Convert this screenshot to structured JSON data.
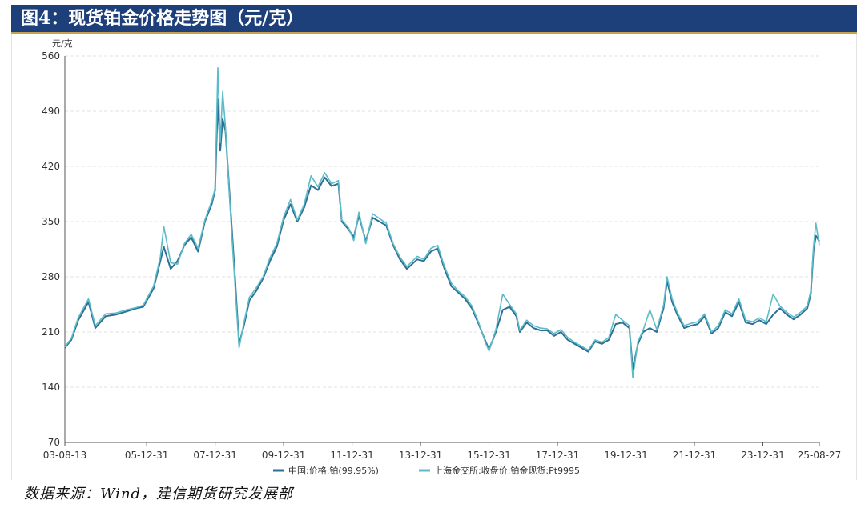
{
  "header": {
    "title": "图4：现货铂金价格走势图（元/克）"
  },
  "footer": {
    "source": "数据来源：Wind，建信期货研究发展部"
  },
  "chart_data": {
    "type": "line",
    "ylabel": "元/克",
    "ylim": [
      70,
      560
    ],
    "y_ticks": [
      70,
      140,
      210,
      280,
      350,
      420,
      490,
      560
    ],
    "x_tick_labels": [
      "03-08-13",
      "05-12-31",
      "07-12-31",
      "09-12-31",
      "11-12-31",
      "13-12-31",
      "15-12-31",
      "17-12-31",
      "19-12-31",
      "21-12-31",
      "23-12-31",
      "25-08-27"
    ],
    "x_tick_years": [
      2003.61,
      2006.0,
      2008.0,
      2010.0,
      2012.0,
      2014.0,
      2016.0,
      2018.0,
      2020.0,
      2022.0,
      2024.0,
      2025.65
    ],
    "grid": "horizontal-dashed",
    "legend_position": "bottom",
    "series": [
      {
        "name": "中国:价格:铂(99.95%)",
        "color": "#2e6f95",
        "points": [
          [
            2003.61,
            190
          ],
          [
            2003.8,
            200
          ],
          [
            2004.0,
            225
          ],
          [
            2004.3,
            248
          ],
          [
            2004.5,
            215
          ],
          [
            2004.8,
            230
          ],
          [
            2005.1,
            232
          ],
          [
            2005.4,
            236
          ],
          [
            2005.7,
            240
          ],
          [
            2005.9,
            242
          ],
          [
            2006.2,
            265
          ],
          [
            2006.4,
            300
          ],
          [
            2006.5,
            318
          ],
          [
            2006.7,
            290
          ],
          [
            2006.9,
            300
          ],
          [
            2007.1,
            320
          ],
          [
            2007.3,
            330
          ],
          [
            2007.5,
            312
          ],
          [
            2007.7,
            350
          ],
          [
            2007.9,
            372
          ],
          [
            2008.0,
            390
          ],
          [
            2008.08,
            505
          ],
          [
            2008.15,
            440
          ],
          [
            2008.22,
            480
          ],
          [
            2008.3,
            465
          ],
          [
            2008.4,
            400
          ],
          [
            2008.55,
            300
          ],
          [
            2008.7,
            195
          ],
          [
            2008.85,
            220
          ],
          [
            2009.0,
            250
          ],
          [
            2009.2,
            262
          ],
          [
            2009.4,
            278
          ],
          [
            2009.6,
            300
          ],
          [
            2009.8,
            318
          ],
          [
            2010.0,
            352
          ],
          [
            2010.2,
            372
          ],
          [
            2010.4,
            350
          ],
          [
            2010.6,
            368
          ],
          [
            2010.8,
            396
          ],
          [
            2011.0,
            390
          ],
          [
            2011.2,
            406
          ],
          [
            2011.4,
            395
          ],
          [
            2011.6,
            398
          ],
          [
            2011.7,
            350
          ],
          [
            2011.9,
            340
          ],
          [
            2012.05,
            330
          ],
          [
            2012.2,
            358
          ],
          [
            2012.4,
            325
          ],
          [
            2012.6,
            355
          ],
          [
            2012.8,
            350
          ],
          [
            2013.0,
            345
          ],
          [
            2013.2,
            320
          ],
          [
            2013.4,
            302
          ],
          [
            2013.6,
            290
          ],
          [
            2013.9,
            302
          ],
          [
            2014.1,
            300
          ],
          [
            2014.3,
            312
          ],
          [
            2014.5,
            316
          ],
          [
            2014.7,
            290
          ],
          [
            2014.9,
            268
          ],
          [
            2015.1,
            260
          ],
          [
            2015.3,
            252
          ],
          [
            2015.5,
            240
          ],
          [
            2015.7,
            220
          ],
          [
            2015.9,
            198
          ],
          [
            2016.0,
            188
          ],
          [
            2016.2,
            210
          ],
          [
            2016.4,
            238
          ],
          [
            2016.6,
            242
          ],
          [
            2016.8,
            230
          ],
          [
            2016.9,
            210
          ],
          [
            2017.1,
            222
          ],
          [
            2017.3,
            215
          ],
          [
            2017.5,
            212
          ],
          [
            2017.7,
            212
          ],
          [
            2017.9,
            205
          ],
          [
            2018.1,
            210
          ],
          [
            2018.3,
            200
          ],
          [
            2018.5,
            195
          ],
          [
            2018.7,
            190
          ],
          [
            2018.9,
            185
          ],
          [
            2019.1,
            198
          ],
          [
            2019.3,
            195
          ],
          [
            2019.5,
            200
          ],
          [
            2019.7,
            220
          ],
          [
            2019.9,
            222
          ],
          [
            2020.1,
            215
          ],
          [
            2020.2,
            163
          ],
          [
            2020.35,
            195
          ],
          [
            2020.5,
            210
          ],
          [
            2020.7,
            215
          ],
          [
            2020.9,
            210
          ],
          [
            2021.1,
            240
          ],
          [
            2021.2,
            275
          ],
          [
            2021.35,
            248
          ],
          [
            2021.5,
            232
          ],
          [
            2021.7,
            215
          ],
          [
            2021.9,
            218
          ],
          [
            2022.1,
            220
          ],
          [
            2022.3,
            230
          ],
          [
            2022.5,
            208
          ],
          [
            2022.7,
            215
          ],
          [
            2022.9,
            235
          ],
          [
            2023.1,
            230
          ],
          [
            2023.3,
            248
          ],
          [
            2023.5,
            222
          ],
          [
            2023.7,
            220
          ],
          [
            2023.9,
            225
          ],
          [
            2024.1,
            220
          ],
          [
            2024.3,
            232
          ],
          [
            2024.5,
            240
          ],
          [
            2024.7,
            232
          ],
          [
            2024.9,
            226
          ],
          [
            2025.1,
            232
          ],
          [
            2025.3,
            240
          ],
          [
            2025.4,
            258
          ],
          [
            2025.48,
            312
          ],
          [
            2025.55,
            332
          ],
          [
            2025.65,
            325
          ]
        ]
      },
      {
        "name": "上海金交所:收盘价:铂金现货:Pt9995",
        "color": "#5bbcc7",
        "points": [
          [
            2003.61,
            191
          ],
          [
            2003.8,
            202
          ],
          [
            2004.0,
            228
          ],
          [
            2004.3,
            252
          ],
          [
            2004.5,
            218
          ],
          [
            2004.8,
            233
          ],
          [
            2005.1,
            234
          ],
          [
            2005.4,
            238
          ],
          [
            2005.7,
            241
          ],
          [
            2005.9,
            244
          ],
          [
            2006.2,
            268
          ],
          [
            2006.4,
            305
          ],
          [
            2006.5,
            344
          ],
          [
            2006.7,
            298
          ],
          [
            2006.9,
            296
          ],
          [
            2007.1,
            322
          ],
          [
            2007.3,
            334
          ],
          [
            2007.5,
            316
          ],
          [
            2007.7,
            352
          ],
          [
            2007.9,
            376
          ],
          [
            2008.0,
            392
          ],
          [
            2008.08,
            545
          ],
          [
            2008.15,
            450
          ],
          [
            2008.22,
            515
          ],
          [
            2008.3,
            470
          ],
          [
            2008.4,
            395
          ],
          [
            2008.55,
            290
          ],
          [
            2008.7,
            190
          ],
          [
            2008.85,
            224
          ],
          [
            2009.0,
            254
          ],
          [
            2009.2,
            266
          ],
          [
            2009.4,
            280
          ],
          [
            2009.6,
            304
          ],
          [
            2009.8,
            322
          ],
          [
            2010.0,
            356
          ],
          [
            2010.2,
            378
          ],
          [
            2010.4,
            352
          ],
          [
            2010.6,
            372
          ],
          [
            2010.8,
            408
          ],
          [
            2011.0,
            394
          ],
          [
            2011.2,
            412
          ],
          [
            2011.4,
            398
          ],
          [
            2011.6,
            402
          ],
          [
            2011.7,
            352
          ],
          [
            2011.9,
            342
          ],
          [
            2012.05,
            326
          ],
          [
            2012.2,
            362
          ],
          [
            2012.4,
            322
          ],
          [
            2012.6,
            360
          ],
          [
            2012.8,
            354
          ],
          [
            2013.0,
            348
          ],
          [
            2013.2,
            322
          ],
          [
            2013.4,
            305
          ],
          [
            2013.6,
            293
          ],
          [
            2013.9,
            306
          ],
          [
            2014.1,
            302
          ],
          [
            2014.3,
            316
          ],
          [
            2014.5,
            320
          ],
          [
            2014.7,
            293
          ],
          [
            2014.9,
            272
          ],
          [
            2015.1,
            262
          ],
          [
            2015.3,
            255
          ],
          [
            2015.5,
            243
          ],
          [
            2015.7,
            222
          ],
          [
            2015.9,
            196
          ],
          [
            2016.0,
            186
          ],
          [
            2016.2,
            213
          ],
          [
            2016.4,
            258
          ],
          [
            2016.6,
            245
          ],
          [
            2016.8,
            233
          ],
          [
            2016.9,
            212
          ],
          [
            2017.1,
            225
          ],
          [
            2017.3,
            218
          ],
          [
            2017.5,
            215
          ],
          [
            2017.7,
            214
          ],
          [
            2017.9,
            208
          ],
          [
            2018.1,
            213
          ],
          [
            2018.3,
            203
          ],
          [
            2018.5,
            197
          ],
          [
            2018.7,
            192
          ],
          [
            2018.9,
            187
          ],
          [
            2019.1,
            200
          ],
          [
            2019.3,
            197
          ],
          [
            2019.5,
            203
          ],
          [
            2019.7,
            232
          ],
          [
            2019.9,
            225
          ],
          [
            2020.1,
            218
          ],
          [
            2020.2,
            152
          ],
          [
            2020.35,
            198
          ],
          [
            2020.5,
            212
          ],
          [
            2020.7,
            238
          ],
          [
            2020.9,
            213
          ],
          [
            2021.1,
            244
          ],
          [
            2021.2,
            280
          ],
          [
            2021.35,
            252
          ],
          [
            2021.5,
            235
          ],
          [
            2021.7,
            218
          ],
          [
            2021.9,
            221
          ],
          [
            2022.1,
            223
          ],
          [
            2022.3,
            233
          ],
          [
            2022.5,
            210
          ],
          [
            2022.7,
            218
          ],
          [
            2022.9,
            238
          ],
          [
            2023.1,
            233
          ],
          [
            2023.3,
            252
          ],
          [
            2023.5,
            225
          ],
          [
            2023.7,
            223
          ],
          [
            2023.9,
            228
          ],
          [
            2024.1,
            223
          ],
          [
            2024.3,
            258
          ],
          [
            2024.5,
            243
          ],
          [
            2024.7,
            235
          ],
          [
            2024.9,
            229
          ],
          [
            2025.1,
            235
          ],
          [
            2025.3,
            243
          ],
          [
            2025.4,
            262
          ],
          [
            2025.48,
            318
          ],
          [
            2025.55,
            348
          ],
          [
            2025.65,
            320
          ]
        ]
      }
    ]
  }
}
